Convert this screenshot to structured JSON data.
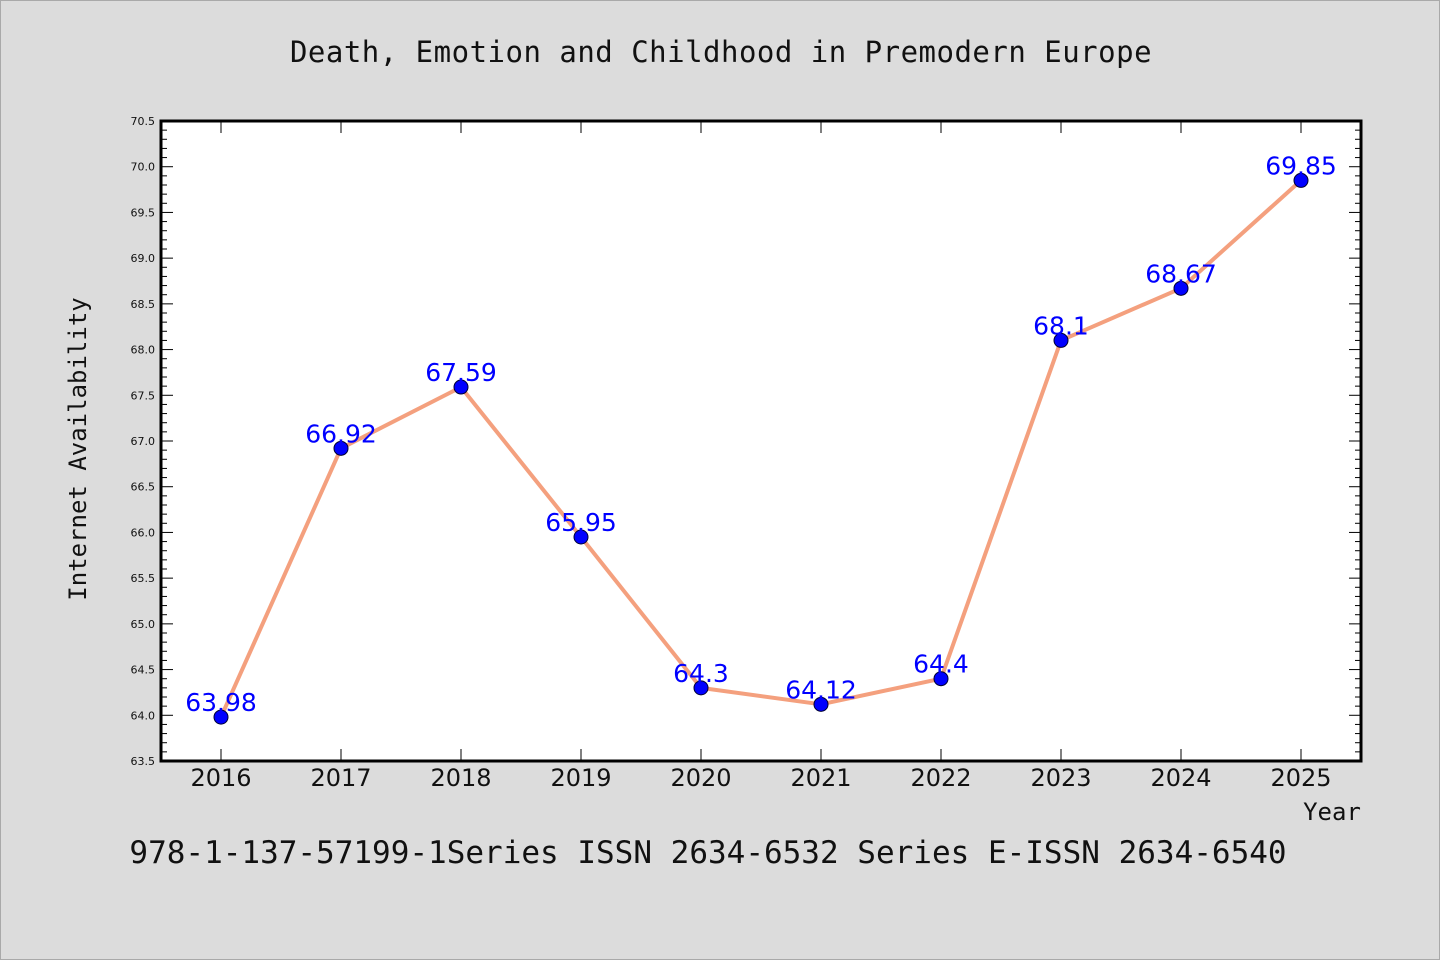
{
  "chart_data": {
    "type": "line",
    "title": "Death, Emotion and Childhood in Premodern Europe",
    "xlabel": "Year",
    "ylabel": "Internet Availability",
    "x": [
      "2016",
      "2017",
      "2018",
      "2019",
      "2020",
      "2021",
      "2022",
      "2023",
      "2024",
      "2025"
    ],
    "series": [
      {
        "values": [
          63.98,
          66.92,
          67.59,
          65.95,
          64.3,
          64.12,
          64.4,
          68.1,
          68.67,
          69.85
        ],
        "labels": [
          "63.98",
          "66.92",
          "67.59",
          "65.95",
          "64.3",
          "64.12",
          "64.4",
          "68.1",
          "68.67",
          "69.85"
        ]
      }
    ],
    "ylim": [
      63.5,
      70.5
    ],
    "yticks": [
      "63.5",
      "64.0",
      "64.5",
      "65.0",
      "65.5",
      "66.0",
      "66.5",
      "67.0",
      "67.5",
      "68.0",
      "68.5",
      "69.0",
      "69.5",
      "70.0",
      "70.5"
    ],
    "grid": false,
    "line_color": "#f4a07e",
    "marker_color": "#0000ff",
    "label_color": "#0000ff",
    "plot_background": "#ffffff",
    "page_background": "#dcdcdc"
  },
  "footer": "978-1-137-57199-1Series ISSN 2634-6532 Series E-ISSN 2634-6540"
}
